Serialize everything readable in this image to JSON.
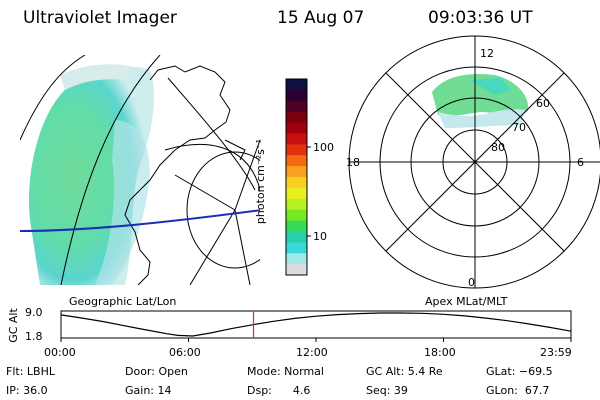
{
  "header": {
    "title": "Ultraviolet Imager",
    "date": "15 Aug 07",
    "time": "09:03:36 UT"
  },
  "left_panel": {
    "label": "Geographic Lat/Lon"
  },
  "right_panel": {
    "label": "Apex MLat/MLT",
    "mlt_labels": [
      "12",
      "18",
      "6",
      "0"
    ],
    "mlat_labels": [
      "60",
      "70",
      "80"
    ]
  },
  "colorbar": {
    "unit_label": "photon cm⁻²s⁻¹",
    "ticks": [
      "100",
      "10"
    ],
    "colors": [
      "#101040",
      "#2a0030",
      "#500020",
      "#7a0010",
      "#a00010",
      "#c81010",
      "#e23010",
      "#f06a10",
      "#f8a020",
      "#f8d020",
      "#e8f020",
      "#b8f020",
      "#78e820",
      "#38d858",
      "#28d0a8",
      "#38d8d8",
      "#a0e8e8",
      "#dcdcdc"
    ]
  },
  "chart_data": {
    "type": "line",
    "title": "",
    "ylabel": "GC Alt",
    "y_ticks": [
      "9.0",
      "1.8"
    ],
    "ylim": [
      1.8,
      9.0
    ],
    "x_ticks": [
      "00:00",
      "06:00",
      "12:00",
      "18:00",
      "23:59"
    ],
    "xlim_hours": [
      0,
      24
    ],
    "marker_time": "09:03:36",
    "marker_color": "#d03030",
    "series": [
      {
        "x_hours": [
          0,
          1,
          2,
          3,
          4,
          5,
          5.5,
          6.2,
          7,
          8,
          9,
          10,
          11,
          12,
          13,
          14,
          15,
          16,
          17,
          18,
          19,
          20,
          21,
          22,
          23,
          24
        ],
        "values": [
          8.4,
          7.4,
          6.3,
          5.0,
          3.7,
          2.5,
          2.0,
          1.8,
          2.7,
          4.1,
          5.3,
          6.4,
          7.3,
          8.0,
          8.5,
          8.8,
          9.0,
          9.0,
          8.9,
          8.6,
          8.1,
          7.4,
          6.6,
          5.6,
          4.5,
          3.3
        ]
      }
    ]
  },
  "status": {
    "row1": [
      "Flt: LBHL",
      "Door: Open",
      "Mode: Normal",
      "GC Alt: 5.4 Re",
      "GLat: −69.5"
    ],
    "row2": [
      "IP: 36.0",
      "Gain: 14",
      "Dsp:      4.6",
      "Seq: 39",
      "GLon:  67.7"
    ]
  }
}
